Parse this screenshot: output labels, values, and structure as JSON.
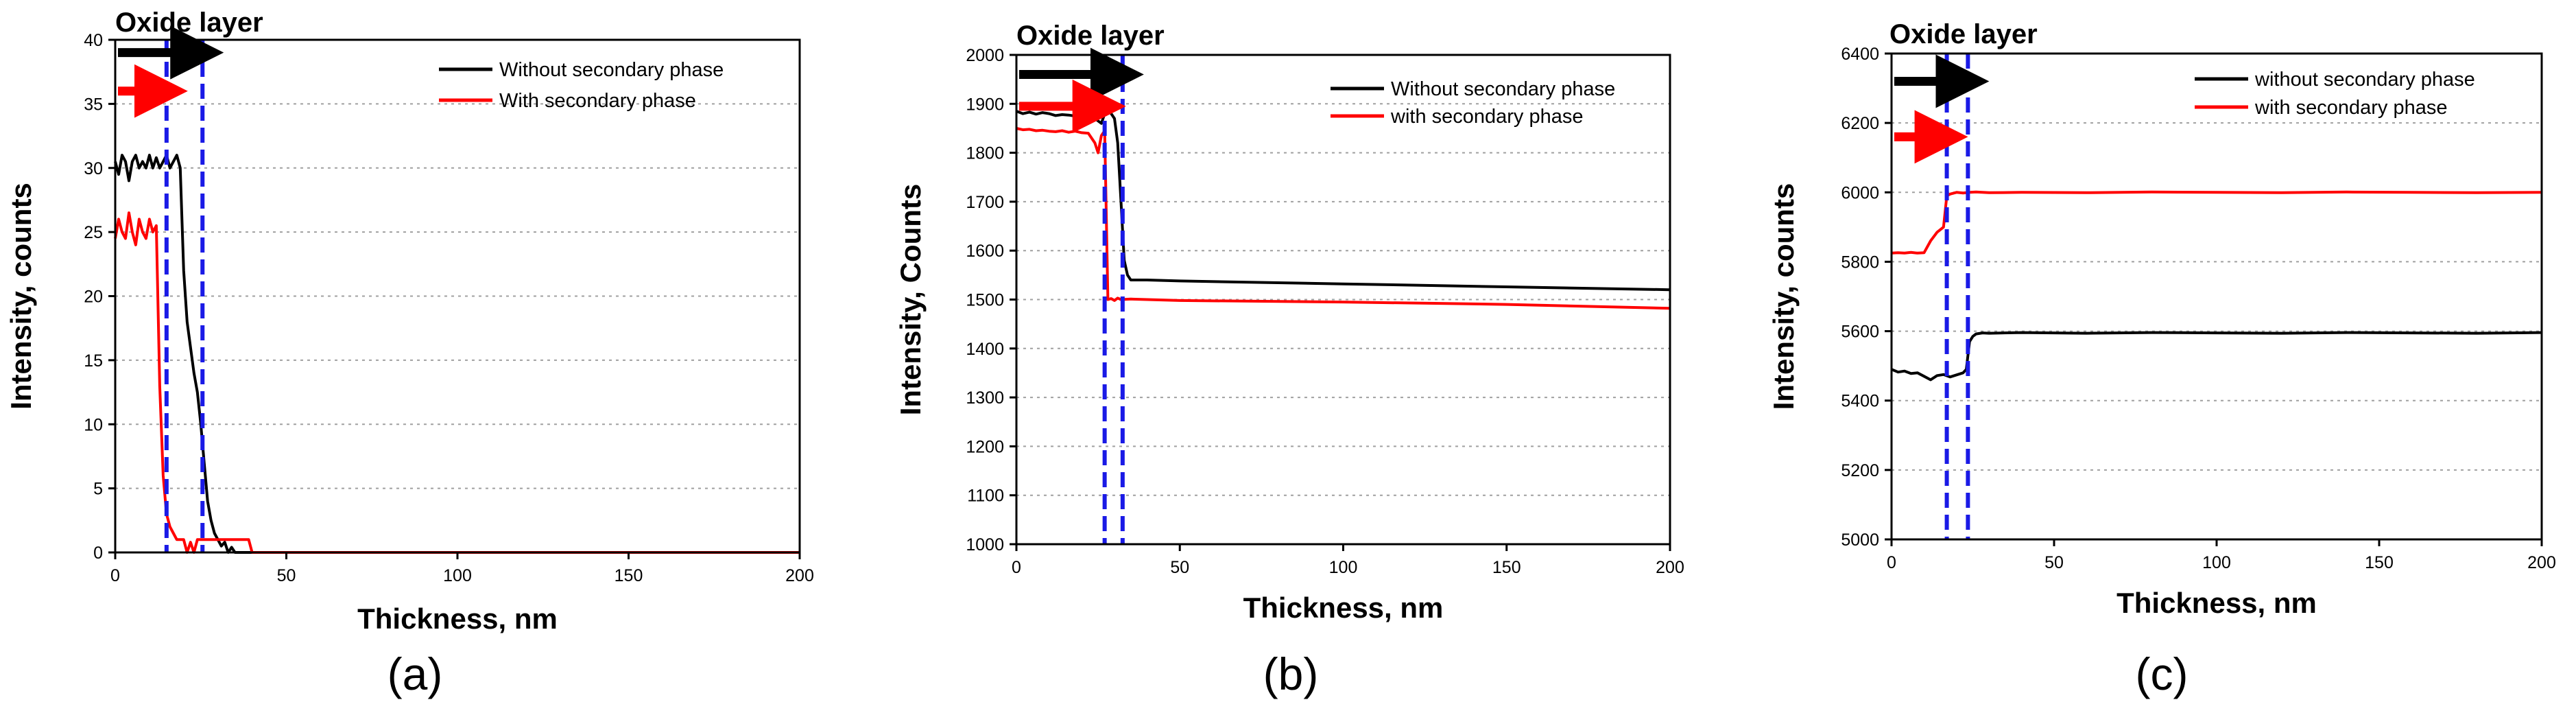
{
  "figure": {
    "panels": [
      {
        "letter": "(a)"
      },
      {
        "letter": "(b)"
      },
      {
        "letter": "(c)"
      }
    ]
  },
  "colors": {
    "without": "#000000",
    "with": "#ff0000",
    "boundary": "#1a1ae6",
    "grid": "#a0a0a0",
    "axis": "#000000"
  },
  "chart_data": [
    {
      "type": "line",
      "panel": "(a)",
      "title": "Oxide layer",
      "xlabel": "Thickness, nm",
      "ylabel": "Intensity, counts",
      "xlim": [
        0,
        200
      ],
      "ylim": [
        0,
        40
      ],
      "xticks": [
        0,
        50,
        100,
        150,
        200
      ],
      "yticks": [
        0,
        5,
        10,
        15,
        20,
        25,
        30,
        35,
        40
      ],
      "grid": "horizontal dotted",
      "legend": "top-right",
      "boundaries": [
        15,
        25.5
      ],
      "arrows": [
        {
          "series": "Without secondary phase",
          "y": 39
        },
        {
          "series": "With secondary phase",
          "y": 36
        }
      ],
      "series": [
        {
          "name": "Without secondary phase",
          "x": [
            0,
            1,
            2,
            3,
            4,
            5,
            6,
            7,
            8,
            9,
            10,
            11,
            12,
            13,
            14,
            15,
            16,
            17,
            18,
            19,
            20,
            21,
            22,
            23,
            24,
            25,
            26,
            27,
            28,
            29,
            30,
            31,
            32,
            33,
            34,
            35,
            36,
            37,
            38,
            39,
            40,
            60,
            100,
            150,
            200
          ],
          "y": [
            30.5,
            29.5,
            31,
            30.5,
            29,
            30.5,
            31,
            30,
            30.5,
            30,
            31,
            30,
            30.8,
            30,
            30.5,
            31,
            30,
            30.5,
            31,
            30,
            22,
            18,
            16,
            14,
            12.5,
            10,
            7,
            4,
            2.5,
            1.5,
            1,
            0.5,
            0.8,
            0,
            0.4,
            0,
            0,
            0,
            0,
            0,
            0,
            0,
            0,
            0,
            0
          ]
        },
        {
          "name": "With secondary phase",
          "x": [
            0,
            1,
            2,
            3,
            4,
            5,
            6,
            7,
            8,
            9,
            10,
            11,
            12,
            13,
            14,
            15,
            16,
            17,
            18,
            19,
            20,
            21,
            22,
            23,
            24,
            25,
            26,
            27,
            28,
            29,
            30,
            31,
            32,
            33,
            34,
            35,
            36,
            37,
            38,
            39,
            40,
            60,
            100,
            150,
            200
          ],
          "y": [
            24.5,
            26,
            25,
            24.5,
            26.5,
            25,
            24,
            26,
            25,
            24.5,
            26,
            25,
            25.5,
            13,
            6,
            3,
            2,
            1.5,
            1,
            1,
            1,
            0,
            0.8,
            0,
            1,
            1,
            1,
            1,
            1,
            1,
            1,
            1,
            1,
            1,
            1,
            1,
            1,
            1,
            1,
            1,
            0,
            0,
            0,
            0,
            0
          ]
        }
      ]
    },
    {
      "type": "line",
      "panel": "(b)",
      "title": "Oxide layer",
      "xlabel": "Thickness, nm",
      "ylabel": "Intensity, Counts",
      "xlim": [
        0,
        200
      ],
      "ylim": [
        1000,
        2000
      ],
      "xticks": [
        0,
        50,
        100,
        150,
        200
      ],
      "yticks": [
        1000,
        1100,
        1200,
        1300,
        1400,
        1500,
        1600,
        1700,
        1800,
        1900,
        2000
      ],
      "grid": "horizontal dotted",
      "legend": "top-right",
      "boundaries": [
        27,
        32.5
      ],
      "arrows": [
        {
          "series": "Without secondary phase",
          "y": 1960
        },
        {
          "series": "with secondary phase",
          "y": 1895
        }
      ],
      "series": [
        {
          "name": "Without secondary phase",
          "x": [
            0,
            2,
            4,
            6,
            8,
            10,
            12,
            14,
            16,
            18,
            20,
            22,
            24,
            26,
            27,
            28,
            29,
            30,
            31,
            32,
            33,
            34,
            35,
            40,
            50,
            100,
            150,
            200
          ],
          "y": [
            1885,
            1880,
            1883,
            1879,
            1882,
            1880,
            1876,
            1878,
            1877,
            1875,
            1878,
            1874,
            1870,
            1860,
            1880,
            1895,
            1880,
            1870,
            1820,
            1700,
            1580,
            1550,
            1540,
            1540,
            1538,
            1532,
            1526,
            1520
          ]
        },
        {
          "name": "with secondary phase",
          "x": [
            0,
            2,
            4,
            6,
            8,
            10,
            12,
            14,
            16,
            18,
            20,
            22,
            24,
            25,
            26,
            27,
            28,
            29,
            30,
            31,
            32,
            35,
            50,
            100,
            150,
            200
          ],
          "y": [
            1850,
            1847,
            1848,
            1845,
            1846,
            1844,
            1843,
            1845,
            1842,
            1844,
            1841,
            1840,
            1820,
            1800,
            1835,
            1845,
            1500,
            1502,
            1498,
            1503,
            1500,
            1501,
            1498,
            1495,
            1490,
            1482
          ]
        }
      ]
    },
    {
      "type": "line",
      "panel": "(c)",
      "title": "Oxide layer",
      "xlabel": "Thickness, nm",
      "ylabel": "Intensity, counts",
      "xlim": [
        0,
        200
      ],
      "ylim": [
        5000,
        6400
      ],
      "xticks": [
        0,
        50,
        100,
        150,
        200
      ],
      "yticks": [
        5000,
        5200,
        5400,
        5600,
        5800,
        6000,
        6200,
        6400
      ],
      "grid": "horizontal dotted",
      "legend": "top-right",
      "boundaries": [
        17,
        23.5
      ],
      "arrows": [
        {
          "series": "without secondary phase",
          "y": 6320
        },
        {
          "series": "with secondary phase",
          "y": 6160
        }
      ],
      "series": [
        {
          "name": "without secondary phase",
          "x": [
            0,
            2,
            4,
            6,
            8,
            10,
            12,
            14,
            16,
            18,
            20,
            22,
            23,
            24,
            25,
            26,
            28,
            30,
            40,
            60,
            80,
            100,
            120,
            140,
            160,
            180,
            200
          ],
          "y": [
            5490,
            5482,
            5485,
            5478,
            5480,
            5470,
            5460,
            5472,
            5475,
            5468,
            5474,
            5480,
            5490,
            5570,
            5585,
            5592,
            5595,
            5594,
            5596,
            5594,
            5596,
            5595,
            5594,
            5596,
            5595,
            5594,
            5596
          ]
        },
        {
          "name": "with secondary phase",
          "x": [
            0,
            2,
            4,
            6,
            8,
            10,
            12,
            14,
            16,
            17,
            18,
            20,
            22,
            24,
            26,
            30,
            40,
            60,
            80,
            100,
            120,
            140,
            160,
            180,
            200
          ],
          "y": [
            5825,
            5826,
            5825,
            5827,
            5825,
            5826,
            5860,
            5885,
            5900,
            5990,
            5995,
            6000,
            5998,
            6000,
            6001,
            5999,
            6000,
            5999,
            6001,
            6000,
            5999,
            6001,
            6000,
            5999,
            6000
          ]
        }
      ]
    }
  ]
}
